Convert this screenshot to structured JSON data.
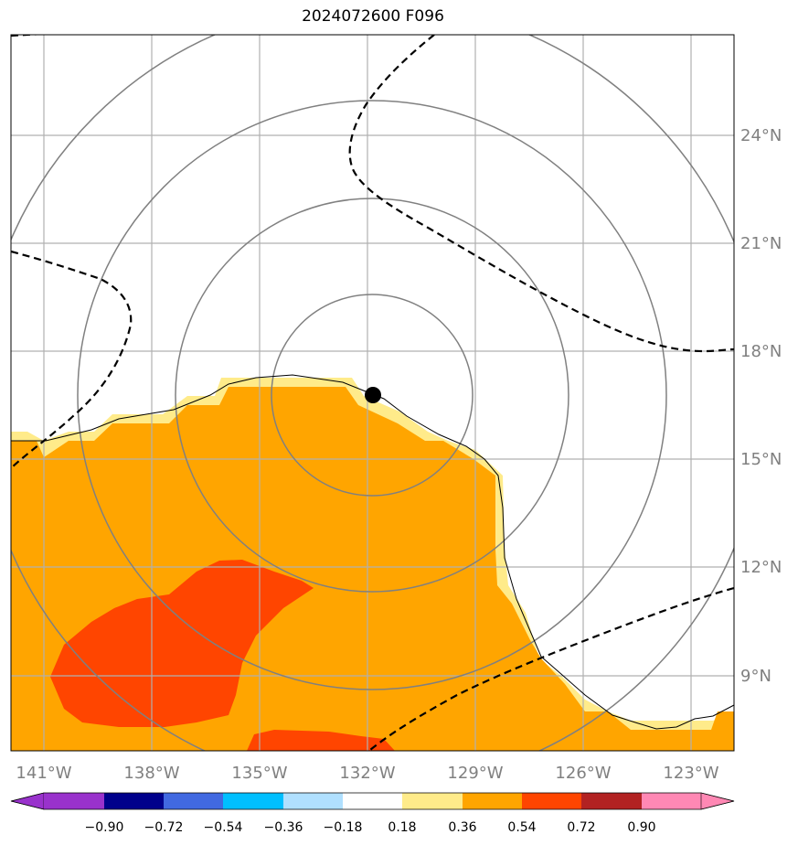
{
  "title": "2024072600 F096",
  "colors": {
    "bins": [
      "#9932CC",
      "#00008B",
      "#4169E1",
      "#00BFFF",
      "#B0E0FF",
      "#FFFFFF",
      "#FFEB8A",
      "#FFA500",
      "#FF4500",
      "#B22222",
      "#FF88B4"
    ],
    "range_circle": "#808080",
    "grid": "#b0b0b0",
    "contour": "#000000",
    "center_marker": "#000000"
  },
  "map": {
    "lon_labels": [
      "141°W",
      "138°W",
      "135°W",
      "132°W",
      "129°W",
      "126°W",
      "123°W"
    ],
    "lat_labels": [
      "24°N",
      "21°N",
      "18°N",
      "15°N",
      "12°N",
      "9°N"
    ],
    "range_rings": 4,
    "center_marker": "filled-circle",
    "dashed_contours": 4,
    "gridlines": true
  },
  "colorbar": {
    "labels": [
      "−0.90",
      "−0.72",
      "−0.54",
      "−0.36",
      "−0.18",
      "0.18",
      "0.36",
      "0.54",
      "0.72",
      "0.90"
    ],
    "extend": "both"
  }
}
